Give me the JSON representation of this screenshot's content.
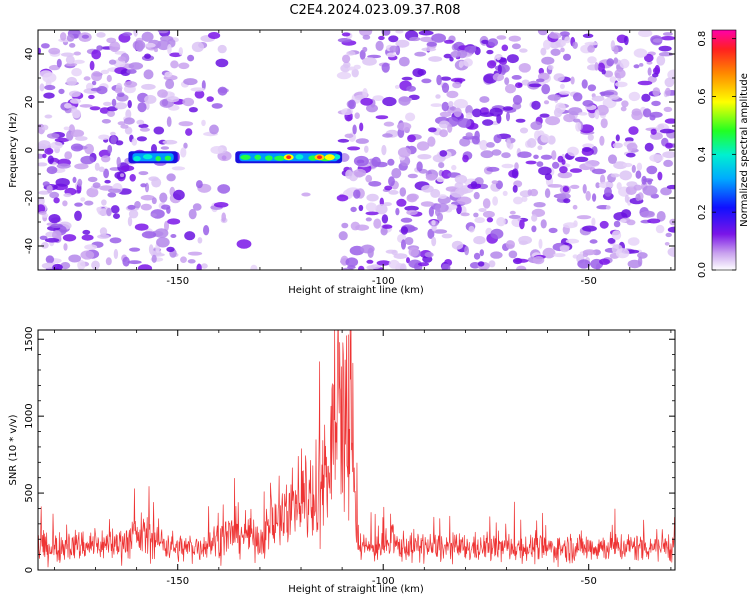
{
  "title": "C2E4.2024.023.09.37.R08",
  "chart_data": [
    {
      "type": "heatmap",
      "xlabel": "Height of straight line (km)",
      "ylabel": "Frequency (Hz)",
      "xlim": [
        -184,
        -29
      ],
      "ylim": [
        -50,
        50
      ],
      "xticks": [
        -150,
        -100,
        -50
      ],
      "yticks": [
        -40,
        -20,
        0,
        20,
        40
      ],
      "colorbar": {
        "label": "Normalized spectral amplitude",
        "range": [
          0,
          0.83
        ],
        "ticks": [
          "0.0",
          "0.2",
          "0.4",
          "0.6",
          "0.8"
        ],
        "tick_values": [
          0,
          0.2,
          0.4,
          0.6,
          0.8
        ]
      },
      "blank_region_km": [
        -138,
        -110
      ],
      "signal_band": {
        "frequency_hz": -3,
        "segments_km": [
          [
            -162,
            -150
          ],
          [
            -136,
            -110
          ]
        ]
      },
      "background_amplitude": "0.0-0.12 (purple)",
      "peak_amplitude": 0.83
    },
    {
      "type": "line",
      "xlabel": "Height of straight line (km)",
      "ylabel": "SNR (10 * v/v)",
      "xlim": [
        -184,
        -29
      ],
      "ylim": [
        0,
        1560
      ],
      "xticks": [
        -150,
        -100,
        -50
      ],
      "yticks": [
        0,
        500,
        1000,
        1500
      ],
      "color": "#ee3333",
      "series": [
        {
          "x": [
            -184,
            -175,
            -165,
            -158,
            -150,
            -145,
            -140,
            -135,
            -130,
            -125,
            -122,
            -120,
            -118,
            -116,
            -114,
            -112,
            -111,
            -110,
            -109,
            -108,
            -107,
            -106,
            -104,
            -100,
            -90,
            -80,
            -70,
            -60,
            -50,
            -40,
            -30
          ],
          "y": [
            150,
            160,
            170,
            230,
            140,
            150,
            200,
            250,
            200,
            350,
            450,
            550,
            500,
            600,
            650,
            1000,
            1560,
            1250,
            850,
            1100,
            600,
            180,
            140,
            160,
            150,
            140,
            150,
            140,
            150,
            150,
            160
          ]
        }
      ]
    }
  ]
}
